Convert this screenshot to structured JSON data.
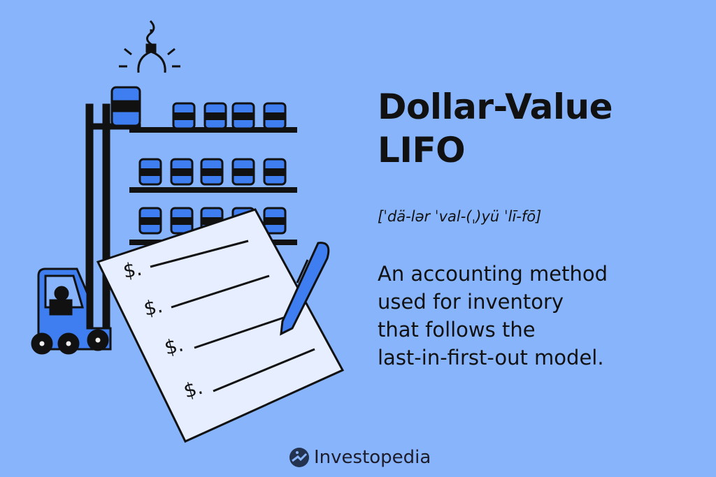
{
  "title_line1": "Dollar-Value",
  "title_line2": "LIFO",
  "pronunciation": "[ˈdä-lər ˈval-(ˌ)yü ˈlī-fō]",
  "definition_lines": [
    "An accounting method",
    "used for inventory",
    "that follows the",
    "last-in-first-out model."
  ],
  "paper_symbols": [
    "$.",
    "$.",
    "$.",
    "$."
  ],
  "brand": {
    "name": "Investopedia",
    "icon": "investopedia-logo-icon"
  },
  "colors": {
    "background": "#88b4fb",
    "accent": "#3f7ef0",
    "ink": "#111111",
    "paper": "#e6eeff",
    "logo": "#22324f"
  }
}
